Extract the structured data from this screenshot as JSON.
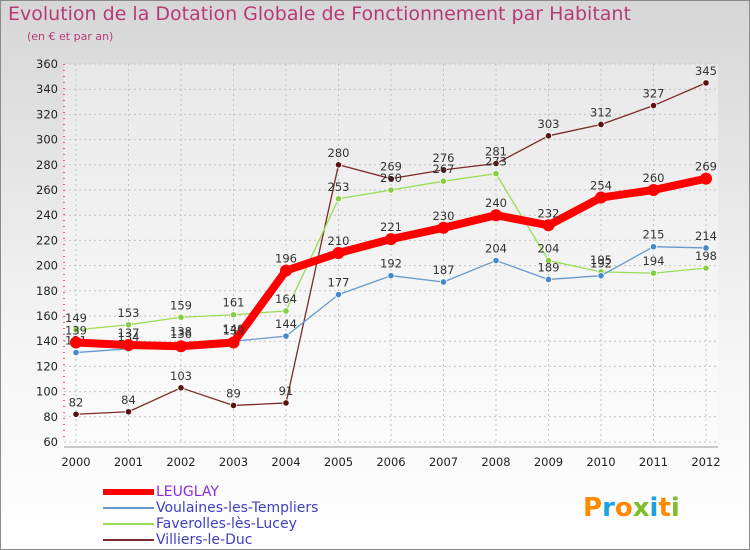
{
  "title": "Evolution de la Dotation Globale de Fonctionnement par Habitant",
  "subtitle": "(en € et par an)",
  "logo": {
    "letters": [
      "P",
      "r",
      "o",
      "x",
      "i",
      "t",
      "i"
    ],
    "colors": [
      "#ff8a00",
      "#1fa0e0",
      "#ff8a00",
      "#7cbf2a",
      "#1fa0e0",
      "#ff8a00",
      "#7cbf2a"
    ]
  },
  "chart_data": {
    "type": "line",
    "title": "Evolution de la Dotation Globale de Fonctionnement par Habitant",
    "subtitle": "(en € et par an)",
    "x": [
      "2000",
      "2001",
      "2002",
      "2003",
      "2004",
      "2005",
      "2006",
      "2007",
      "2008",
      "2009",
      "2010",
      "2011",
      "2012"
    ],
    "ylim": [
      60,
      360
    ],
    "yticks": [
      60,
      80,
      100,
      120,
      140,
      160,
      180,
      200,
      220,
      240,
      260,
      280,
      300,
      320,
      340,
      360
    ],
    "grid": true,
    "legend_position": "bottom-left",
    "series": [
      {
        "name": "LEUGLAY",
        "color": "#ff0000",
        "values": [
          139,
          137,
          136,
          139,
          196,
          210,
          221,
          230,
          240,
          232,
          254,
          260,
          269
        ]
      },
      {
        "name": "Voulaines-les-Templiers",
        "color": "#6699cc",
        "values": [
          131,
          134,
          138,
          140,
          144,
          177,
          192,
          187,
          204,
          189,
          192,
          215,
          214
        ]
      },
      {
        "name": "Faverolles-lès-Lucey",
        "color": "#99dd55",
        "values": [
          149,
          153,
          159,
          161,
          164,
          253,
          260,
          267,
          273,
          204,
          195,
          194,
          198
        ]
      },
      {
        "name": "Villiers-le-Duc",
        "color": "#7a2a2a",
        "values": [
          82,
          84,
          103,
          89,
          91,
          280,
          269,
          276,
          281,
          303,
          312,
          327,
          345
        ]
      }
    ]
  }
}
